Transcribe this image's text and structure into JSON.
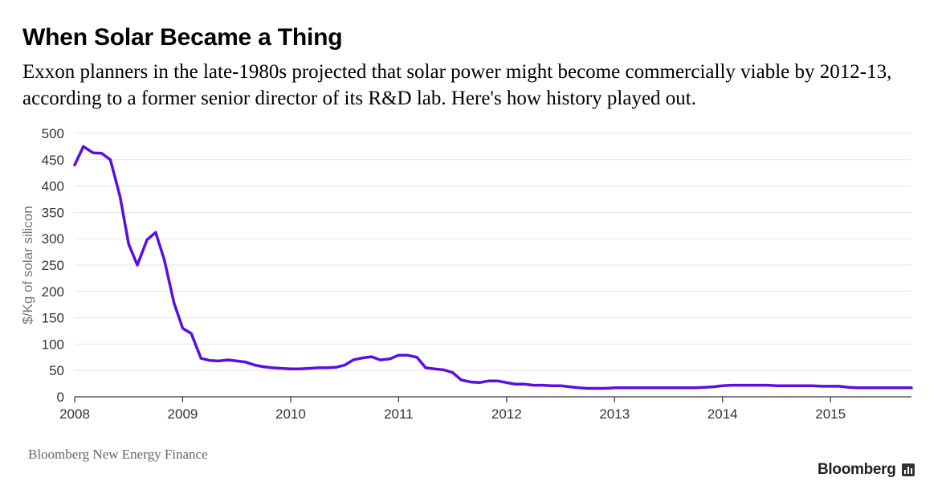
{
  "header": {
    "title": "When Solar Became a Thing",
    "subtitle": "Exxon planners in the late-1980s projected that solar power might become commercially viable by 2012-13, according to a former senior director of its R&D lab. Here's how history played out."
  },
  "footer": {
    "source": "Bloomberg New Energy Finance",
    "logo_text": "Bloomberg"
  },
  "colors": {
    "line": "#5a0fe0",
    "grid": "#e6e6e6",
    "axis": "#333333"
  },
  "chart_data": {
    "type": "line",
    "title": "When Solar Became a Thing",
    "xlabel": "",
    "ylabel": "$/Kg of solar silicon",
    "xlim": [
      2008.0,
      2015.75
    ],
    "ylim": [
      0,
      500
    ],
    "x_ticks": [
      "2008",
      "2009",
      "2010",
      "2011",
      "2012",
      "2013",
      "2014",
      "2015"
    ],
    "y_ticks": [
      0,
      50,
      100,
      150,
      200,
      250,
      300,
      350,
      400,
      450,
      500
    ],
    "grid": true,
    "series": [
      {
        "name": "",
        "x": [
          2008.0,
          2008.08,
          2008.17,
          2008.25,
          2008.33,
          2008.42,
          2008.5,
          2008.58,
          2008.67,
          2008.75,
          2008.83,
          2008.92,
          2009.0,
          2009.08,
          2009.17,
          2009.25,
          2009.33,
          2009.42,
          2009.5,
          2009.58,
          2009.67,
          2009.75,
          2009.83,
          2009.92,
          2010.0,
          2010.08,
          2010.17,
          2010.25,
          2010.33,
          2010.42,
          2010.5,
          2010.58,
          2010.67,
          2010.75,
          2010.83,
          2010.92,
          2011.0,
          2011.08,
          2011.17,
          2011.25,
          2011.33,
          2011.42,
          2011.5,
          2011.58,
          2011.67,
          2011.75,
          2011.83,
          2011.92,
          2012.0,
          2012.08,
          2012.17,
          2012.25,
          2012.33,
          2012.42,
          2012.5,
          2012.58,
          2012.67,
          2012.75,
          2012.83,
          2012.92,
          2013.0,
          2013.08,
          2013.17,
          2013.25,
          2013.33,
          2013.42,
          2013.5,
          2013.58,
          2013.67,
          2013.75,
          2013.83,
          2013.92,
          2014.0,
          2014.08,
          2014.17,
          2014.25,
          2014.33,
          2014.42,
          2014.5,
          2014.58,
          2014.67,
          2014.75,
          2014.83,
          2014.92,
          2015.0,
          2015.08,
          2015.17,
          2015.25,
          2015.33,
          2015.42,
          2015.5,
          2015.58,
          2015.67,
          2015.75
        ],
        "values": [
          440,
          475,
          463,
          462,
          450,
          380,
          290,
          250,
          298,
          312,
          260,
          178,
          130,
          120,
          73,
          69,
          68,
          70,
          68,
          66,
          60,
          57,
          55,
          54,
          53,
          53,
          54,
          55,
          55,
          56,
          60,
          70,
          74,
          76,
          70,
          72,
          79,
          79,
          75,
          55,
          53,
          51,
          46,
          32,
          28,
          27,
          30,
          30,
          27,
          24,
          24,
          22,
          22,
          21,
          21,
          19,
          17,
          16,
          16,
          16,
          17,
          17,
          17,
          17,
          17,
          17,
          17,
          17,
          17,
          17,
          18,
          19,
          21,
          22,
          22,
          22,
          22,
          22,
          21,
          21,
          21,
          21,
          21,
          20,
          20,
          20,
          18,
          17,
          17,
          17,
          17,
          17,
          17,
          17
        ]
      }
    ]
  }
}
